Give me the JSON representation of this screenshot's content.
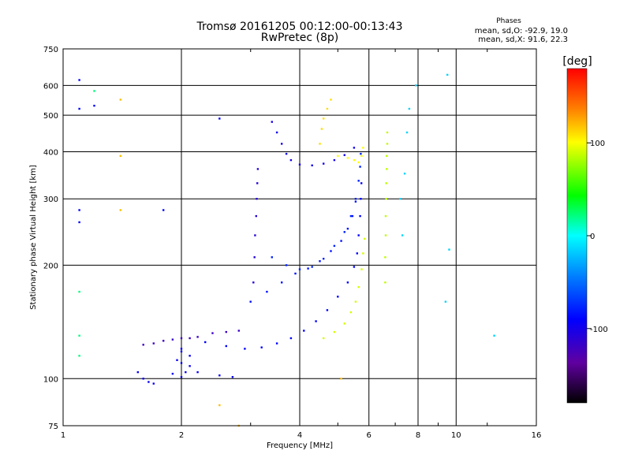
{
  "header": {
    "title": "Tromsø 20161205 00:12:00-00:13:43",
    "subtitle": "RwPretec (8p)",
    "stats_title": "Phases",
    "stats_o": "mean, sd,O: -92.9, 19.0",
    "stats_x": "mean, sd,X:  91.6, 22.3"
  },
  "colorbar": {
    "title": "[deg]",
    "min": -180,
    "max": 180,
    "ticks": [
      100,
      0,
      -100
    ]
  },
  "chart_data": {
    "type": "scatter",
    "xlabel": "Frequency [MHz]",
    "ylabel": "Stationary phase Virtual Height [km]",
    "xscale": "log",
    "yscale": "log",
    "xlim": [
      1,
      16
    ],
    "ylim": [
      75,
      750
    ],
    "xticks": [
      1,
      2,
      4,
      6,
      8,
      10,
      16
    ],
    "yticks": [
      75,
      100,
      200,
      300,
      400,
      500,
      600,
      750
    ],
    "grid": true,
    "color_by": "phase_deg",
    "traces": [
      {
        "name_hint": "O-mode lower trace",
        "phase": -100,
        "points": [
          [
            2.3,
            125
          ],
          [
            2.6,
            122
          ],
          [
            2.9,
            120
          ],
          [
            3.2,
            121
          ],
          [
            3.5,
            124
          ],
          [
            3.8,
            128
          ],
          [
            4.1,
            134
          ],
          [
            4.4,
            142
          ],
          [
            4.7,
            152
          ],
          [
            5.0,
            165
          ],
          [
            5.3,
            180
          ],
          [
            5.5,
            198
          ],
          [
            5.6,
            215
          ],
          [
            5.65,
            240
          ],
          [
            5.7,
            270
          ],
          [
            5.72,
            300
          ],
          [
            5.74,
            330
          ]
        ]
      },
      {
        "name_hint": "O-mode middle trace",
        "phase": -95,
        "points": [
          [
            3.0,
            160
          ],
          [
            3.3,
            170
          ],
          [
            3.6,
            180
          ],
          [
            3.9,
            190
          ],
          [
            4.2,
            196
          ],
          [
            4.5,
            205
          ],
          [
            4.8,
            218
          ],
          [
            5.1,
            232
          ],
          [
            5.3,
            250
          ],
          [
            5.45,
            270
          ],
          [
            5.55,
            295
          ]
        ]
      },
      {
        "name_hint": "O-mode upper trace",
        "phase": -90,
        "points": [
          [
            3.4,
            210
          ],
          [
            3.7,
            200
          ],
          [
            4.0,
            195
          ],
          [
            4.3,
            198
          ],
          [
            4.6,
            208
          ],
          [
            4.9,
            225
          ],
          [
            5.2,
            245
          ],
          [
            5.4,
            270
          ],
          [
            5.55,
            300
          ],
          [
            5.65,
            335
          ],
          [
            5.7,
            365
          ],
          [
            5.72,
            395
          ]
        ]
      },
      {
        "name_hint": "O-mode F2 high",
        "phase": -110,
        "points": [
          [
            3.4,
            480
          ],
          [
            3.5,
            450
          ],
          [
            3.6,
            420
          ],
          [
            3.7,
            395
          ],
          [
            3.8,
            380
          ],
          [
            4.0,
            370
          ],
          [
            4.3,
            368
          ],
          [
            4.6,
            372
          ],
          [
            4.9,
            380
          ],
          [
            5.2,
            392
          ],
          [
            5.5,
            410
          ]
        ]
      },
      {
        "name_hint": "O-mode vertical 3.0 MHz",
        "phase": -120,
        "points": [
          [
            3.05,
            180
          ],
          [
            3.07,
            210
          ],
          [
            3.08,
            240
          ],
          [
            3.1,
            270
          ],
          [
            3.11,
            300
          ],
          [
            3.12,
            330
          ],
          [
            3.13,
            360
          ]
        ]
      },
      {
        "name_hint": "low frequency E trace",
        "phase": -130,
        "points": [
          [
            1.6,
            123
          ],
          [
            1.7,
            124
          ],
          [
            1.8,
            126
          ],
          [
            1.9,
            127
          ],
          [
            2.0,
            128
          ],
          [
            2.1,
            128
          ],
          [
            2.2,
            129
          ],
          [
            2.4,
            132
          ],
          [
            2.6,
            133
          ],
          [
            2.8,
            134
          ]
        ]
      },
      {
        "name_hint": "low frequency scatter",
        "phase": -105,
        "points": [
          [
            1.55,
            104
          ],
          [
            1.6,
            100
          ],
          [
            1.65,
            98
          ],
          [
            1.7,
            97
          ],
          [
            1.9,
            103
          ],
          [
            2.0,
            101
          ],
          [
            2.05,
            104
          ],
          [
            2.1,
            108
          ],
          [
            2.2,
            104
          ],
          [
            2.5,
            102
          ],
          [
            2.7,
            101
          ],
          [
            1.95,
            112
          ],
          [
            2.0,
            118
          ],
          [
            2.1,
            115
          ]
        ]
      },
      {
        "name_hint": "X-mode lower trace",
        "phase": 90,
        "points": [
          [
            4.6,
            128
          ],
          [
            4.9,
            133
          ],
          [
            5.2,
            140
          ],
          [
            5.4,
            150
          ],
          [
            5.55,
            160
          ],
          [
            5.65,
            175
          ],
          [
            5.75,
            195
          ],
          [
            5.8,
            215
          ],
          [
            5.85,
            235
          ]
        ]
      },
      {
        "name_hint": "X-mode upper trace",
        "phase": 100,
        "points": [
          [
            5.0,
            390
          ],
          [
            5.3,
            385
          ],
          [
            5.5,
            380
          ],
          [
            5.65,
            375
          ],
          [
            5.75,
            390
          ],
          [
            5.8,
            410
          ]
        ]
      },
      {
        "name_hint": "X-mode vertical 6.6 MHz",
        "phase": 85,
        "points": [
          [
            6.6,
            180
          ],
          [
            6.6,
            210
          ],
          [
            6.62,
            240
          ],
          [
            6.62,
            270
          ],
          [
            6.64,
            300
          ],
          [
            6.64,
            330
          ],
          [
            6.66,
            360
          ],
          [
            6.66,
            390
          ],
          [
            6.68,
            420
          ],
          [
            6.68,
            450
          ]
        ]
      },
      {
        "name_hint": "X-mode near 4.5 MHz",
        "phase": 110,
        "points": [
          [
            4.5,
            420
          ],
          [
            4.55,
            460
          ],
          [
            4.6,
            490
          ],
          [
            4.7,
            520
          ],
          [
            4.8,
            550
          ]
        ]
      },
      {
        "name_hint": "sparse high frequency",
        "phase": -20,
        "points": [
          [
            7.2,
            300
          ],
          [
            7.4,
            350
          ],
          [
            7.5,
            450
          ],
          [
            7.6,
            520
          ],
          [
            7.9,
            600
          ],
          [
            9.5,
            640
          ],
          [
            12.5,
            130
          ],
          [
            9.6,
            220
          ],
          [
            7.3,
            240
          ],
          [
            9.4,
            160
          ]
        ]
      },
      {
        "name_hint": "sparse low frequency",
        "phase": -100,
        "points": [
          [
            1.1,
            620
          ],
          [
            1.1,
            520
          ],
          [
            1.2,
            530
          ],
          [
            1.1,
            280
          ],
          [
            1.1,
            260
          ],
          [
            1.8,
            280
          ],
          [
            2.5,
            490
          ],
          [
            2.0,
            120
          ],
          [
            2.0,
            110
          ]
        ]
      },
      {
        "name_hint": "sparse low frequency warm",
        "phase": 120,
        "points": [
          [
            1.4,
            550
          ],
          [
            1.4,
            390
          ],
          [
            1.4,
            280
          ],
          [
            2.5,
            85
          ],
          [
            2.8,
            75
          ],
          [
            5.1,
            100
          ]
        ]
      },
      {
        "name_hint": "sparse low frequency cyan",
        "phase": 20,
        "points": [
          [
            1.2,
            580
          ],
          [
            1.1,
            170
          ],
          [
            1.1,
            130
          ],
          [
            1.1,
            115
          ]
        ]
      }
    ]
  }
}
